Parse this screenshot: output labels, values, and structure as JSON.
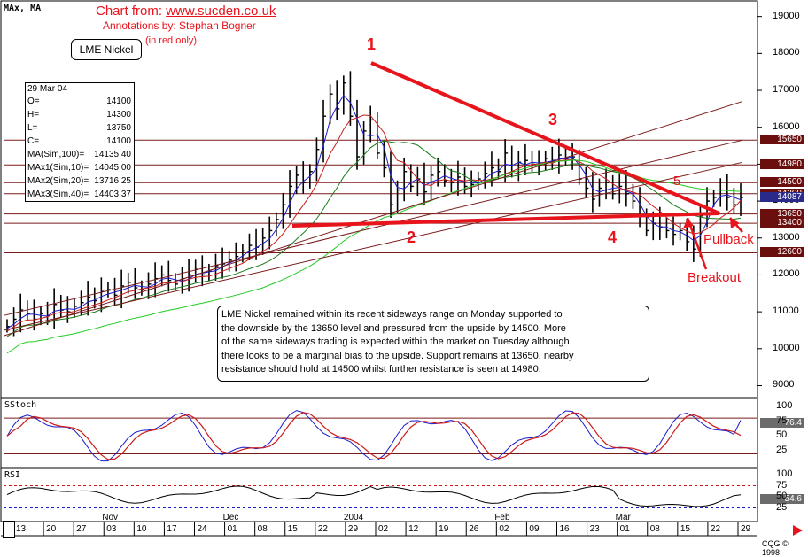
{
  "header": {
    "indicator_labels": "MAx, MA",
    "credit_prefix": "Chart from: ",
    "credit_site": "www.sucden.co.uk",
    "annotations_by": "Annotations by: Stephan Bogner",
    "in_red_only": "(in red only)",
    "instrument": "LME Nickel"
  },
  "info_box": {
    "date": "29 Mar 04",
    "rows": [
      {
        "label": "O=",
        "value": "14100"
      },
      {
        "label": "H=",
        "value": "14300"
      },
      {
        "label": "L=",
        "value": "13750"
      },
      {
        "label": "C=",
        "value": "14100"
      },
      {
        "label": "MA(Sim,100)=",
        "value": "14135.40"
      },
      {
        "label": "MAx1(Sim,10)=",
        "value": "14045.00"
      },
      {
        "label": "MAx2(Sim,20)=",
        "value": "13716.25"
      },
      {
        "label": "MAx3(Sim,40)=",
        "value": "14403.37"
      }
    ]
  },
  "commentary": [
    "LME Nickel remained within its recent sideways range on Monday supported to",
    "the downside by the 13650 level and pressured from the upside by 14500.  More",
    "of the same sideways trading is expected within the market on Tuesday although",
    "there looks  to be a marginal bias to the upside.  Support remains at 13650, nearby",
    "resistance should hold at 14500 whilst further resistance is seen at 14980."
  ],
  "annotations": {
    "point_1": "1",
    "point_2": "2",
    "point_3": "3",
    "point_4": "4",
    "point_5": "5",
    "breakout": "Breakout",
    "pullback": "Pullback"
  },
  "subcharts": {
    "stoch_title": "SStoch",
    "stoch_value": "76.4",
    "rsi_title": "RSI",
    "rsi_value": "54.6"
  },
  "footer": {
    "copyright": "CQG © 1998"
  },
  "colors": {
    "price_bars": "#000000",
    "ma10": "#1a1acc",
    "ma20": "#cc1a1a",
    "ma40": "#1a7a1a",
    "ma100": "#22cc22",
    "annotation": "#e8141c",
    "channel": "#7a1a1a",
    "level_box": "#6b0e0e"
  },
  "chart_data": [
    {
      "type": "line",
      "title": "",
      "y_ticks": [
        9000,
        10000,
        11000,
        12000,
        13000,
        14000,
        15000,
        16000,
        17000,
        18000,
        19000
      ],
      "ylim": [
        8700,
        19400
      ],
      "x_tick_labels": [
        "13",
        "20",
        "27",
        "03",
        "10",
        "17",
        "24",
        "01",
        "08",
        "15",
        "22",
        "29",
        "02",
        "12",
        "19",
        "26",
        "02",
        "09",
        "16",
        "23",
        "01",
        "08",
        "15",
        "22",
        "29"
      ],
      "month_labels": [
        "Nov",
        "Dec",
        "2004",
        "Feb",
        "Mar"
      ],
      "horizontal_levels": [
        {
          "value": 15650,
          "label": "15650"
        },
        {
          "value": 14980,
          "label": "14980"
        },
        {
          "value": 14500,
          "label": "14500"
        },
        {
          "value": 14200,
          "label": "14200"
        },
        {
          "value": 13650,
          "label": "13650"
        },
        {
          "value": 13400,
          "label": "13400"
        },
        {
          "value": 12600,
          "label": "12600"
        }
      ],
      "current_price_marker": "14087",
      "close_series": {
        "name": "",
        "values": [
          10600,
          10800,
          11050,
          10950,
          10800,
          10950,
          10900,
          11200,
          11050,
          11000,
          11150,
          11250,
          11400,
          11300,
          11550,
          11600,
          11450,
          11700,
          11800,
          11650,
          11600,
          11750,
          11900,
          12000,
          11850,
          11750,
          11900,
          12000,
          12150,
          12000,
          12100,
          12250,
          12300,
          12400,
          12500,
          12650,
          12800,
          12750,
          13000,
          13200,
          13500,
          13900,
          14400,
          14700,
          14500,
          14800,
          15400,
          16300,
          16900,
          16500,
          17200,
          16300,
          15200,
          15900,
          16200,
          15300,
          14900,
          13900,
          14300,
          14800,
          14400,
          14600,
          14250,
          14700,
          14800,
          14550,
          14500,
          14650,
          14400,
          14450,
          14600,
          14750,
          14900,
          14800,
          15300,
          14800,
          15050,
          15100,
          15000,
          15000,
          15150,
          15100,
          15250,
          15150,
          15200,
          14600,
          14350,
          14050,
          14350,
          14500,
          14200,
          14400,
          14200,
          14000,
          13600,
          13200,
          13400,
          13300,
          13200,
          13100,
          13200,
          12900,
          12700,
          13600,
          14000,
          14100,
          14300,
          14100,
          13900,
          14100
        ]
      },
      "moving_averages": [
        {
          "name": "MA(Sim,100)",
          "last": 14135.4
        },
        {
          "name": "MAx1(Sim,10)",
          "last": 14045.0
        },
        {
          "name": "MAx2(Sim,20)",
          "last": 13716.25
        },
        {
          "name": "MAx3(Sim,40)",
          "last": 14403.37
        }
      ],
      "grid": false
    },
    {
      "type": "line",
      "title": "SStoch",
      "y_ticks": [
        25,
        50,
        75,
        100
      ],
      "ylim": [
        0,
        110
      ],
      "last": 76.4
    },
    {
      "type": "line",
      "title": "RSI",
      "y_ticks": [
        25,
        50,
        75,
        100
      ],
      "ylim": [
        0,
        110
      ],
      "last": 54.6
    }
  ]
}
